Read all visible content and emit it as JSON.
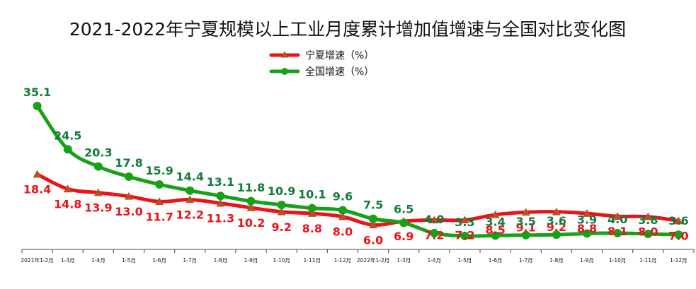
{
  "chart_data": {
    "type": "line",
    "title": "2021-2022年宁夏规模以上工业月度累计增加值增速与全国对比变化图",
    "categories": [
      "2021年1-2月",
      "1-3月",
      "1-4月",
      "1-5月",
      "1-6月",
      "1-7月",
      "1-8月",
      "1-9月",
      "1-10月",
      "1-11月",
      "1-12月",
      "2022年1-2月",
      "1-3月",
      "1-4月",
      "1-5月",
      "1-6月",
      "1-7月",
      "1-8月",
      "1-9月",
      "1-10月",
      "1-11月",
      "1-12月"
    ],
    "series": [
      {
        "name": "宁夏增速（%）",
        "color": "#e8141a",
        "marker": "triangle",
        "label_position": "below",
        "values": [
          18.4,
          14.8,
          13.9,
          13.0,
          11.7,
          12.2,
          11.3,
          10.2,
          9.2,
          8.8,
          8.0,
          6.0,
          6.9,
          7.2,
          7.2,
          8.5,
          9.1,
          9.2,
          8.8,
          8.1,
          8.0,
          7.0
        ],
        "value_labels": [
          "18.4",
          "14.8",
          "13.9",
          "13.0",
          "11.7",
          "12.2",
          "11.3",
          "10.2",
          "9.2",
          "8.8",
          "8.0",
          "6.0",
          "6.9",
          "7.2",
          "7.2",
          "8.5",
          "9.1",
          "9.2",
          "8.8",
          "8.1",
          "8.0",
          "7.0"
        ]
      },
      {
        "name": "全国增速（%）",
        "color": "#19a019",
        "label_color": "#137a3c",
        "marker": "circle",
        "label_position": "above",
        "values": [
          35.1,
          24.5,
          20.3,
          17.8,
          15.9,
          14.4,
          13.1,
          11.8,
          10.9,
          10.1,
          9.6,
          7.5,
          6.5,
          4.0,
          3.3,
          3.4,
          3.5,
          3.6,
          3.9,
          4.0,
          3.8,
          3.6
        ],
        "value_labels": [
          "35.1",
          "24.5",
          "20.3",
          "17.8",
          "15.9",
          "14.4",
          "13.1",
          "11.8",
          "10.9",
          "10.1",
          "9.6",
          "7.5",
          "6.5",
          "4.0",
          "3.3",
          "3.4",
          "3.5",
          "3.6",
          "3.9",
          "4.0",
          "3.8",
          "3.6"
        ]
      }
    ],
    "ylim": [
      0,
      40
    ],
    "grid": false,
    "legend": "top-center"
  }
}
